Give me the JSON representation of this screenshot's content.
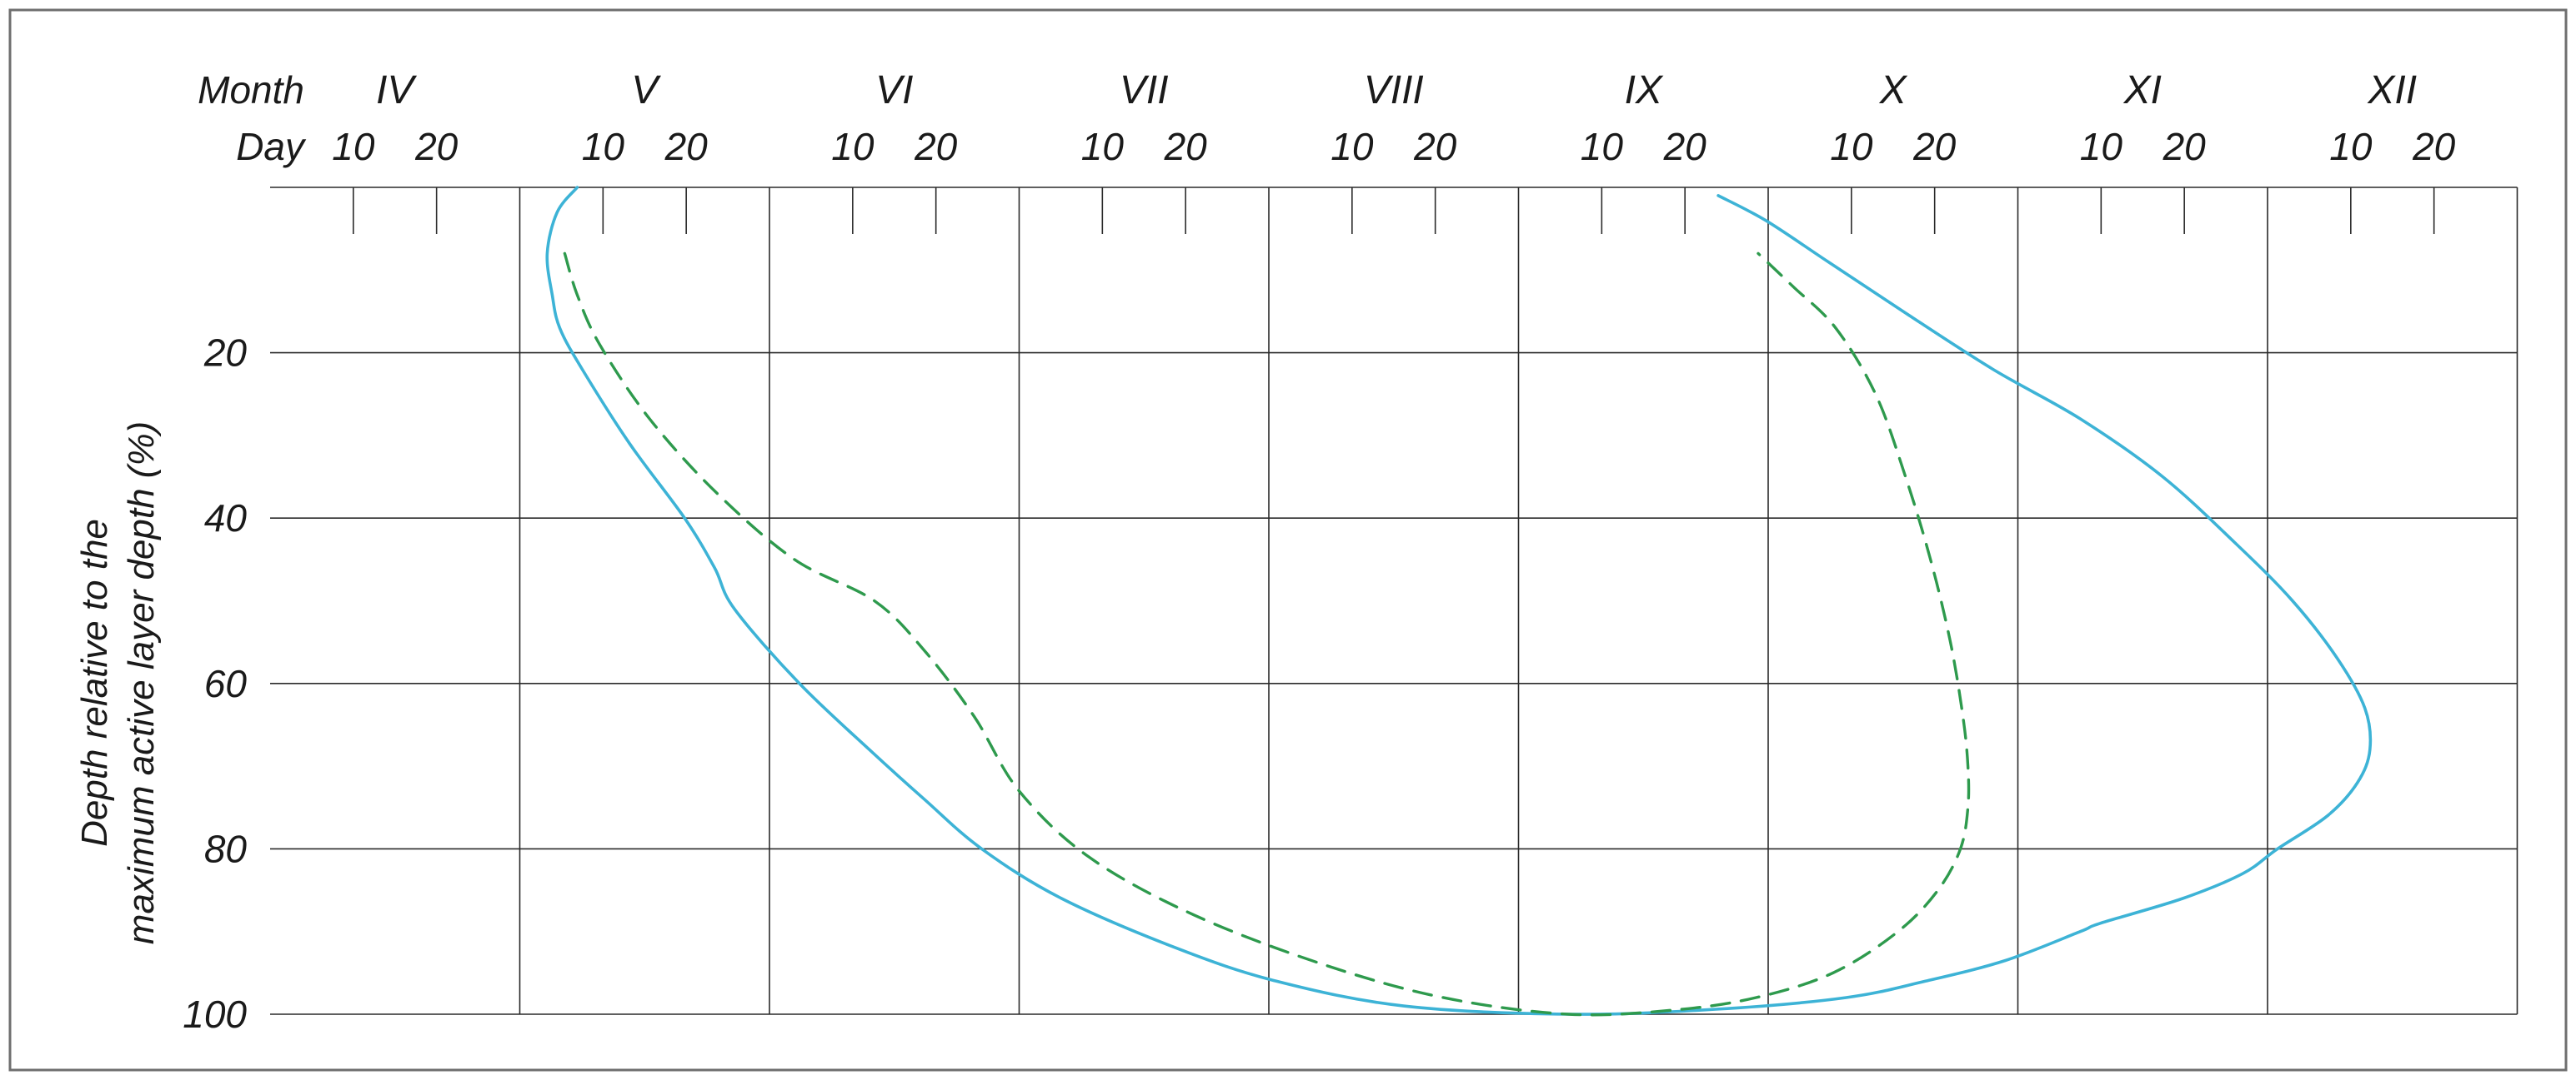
{
  "chart_data": {
    "type": "line",
    "title": "",
    "x_month_label": "Month",
    "x_day_label": "Day",
    "months": [
      "IV",
      "V",
      "VI",
      "VII",
      "VIII",
      "IX",
      "X",
      "XI",
      "XII"
    ],
    "day_ticks": [
      "10",
      "20"
    ],
    "ylabel_line1": "Depth relative to the",
    "ylabel_line2": "maximum active layer depth (%)",
    "ylim": [
      100,
      0
    ],
    "yticks": [
      "20",
      "40",
      "60",
      "80",
      "100"
    ],
    "x_unit": "month position (IV = 0 … XII end = 9)",
    "grid": true,
    "series": [
      {
        "style": "solid",
        "color": "#3db3d6",
        "points": [
          [
            1.23,
            0
          ],
          [
            1.15,
            3
          ],
          [
            1.11,
            8
          ],
          [
            1.13,
            13
          ],
          [
            1.16,
            17
          ],
          [
            1.25,
            22
          ],
          [
            1.44,
            31
          ],
          [
            1.66,
            40
          ],
          [
            1.78,
            46
          ],
          [
            1.86,
            51
          ],
          [
            2.12,
            60
          ],
          [
            2.4,
            68
          ],
          [
            2.62,
            74
          ],
          [
            2.85,
            80
          ],
          [
            3.17,
            86
          ],
          [
            3.63,
            92
          ],
          [
            4.03,
            96
          ],
          [
            4.54,
            99
          ],
          [
            5.2,
            100
          ],
          [
            5.79,
            99.4
          ],
          [
            6.31,
            98
          ],
          [
            6.63,
            96
          ],
          [
            6.95,
            93.5
          ],
          [
            7.25,
            90
          ],
          [
            7.33,
            89
          ],
          [
            7.66,
            86
          ],
          [
            7.9,
            83
          ],
          [
            8.04,
            80
          ],
          [
            8.24,
            76
          ],
          [
            8.36,
            72
          ],
          [
            8.41,
            68
          ],
          [
            8.39,
            63
          ],
          [
            8.28,
            57
          ],
          [
            8.1,
            50
          ],
          [
            7.87,
            43
          ],
          [
            7.58,
            35
          ],
          [
            7.25,
            28
          ],
          [
            6.9,
            22
          ],
          [
            6.54,
            15
          ],
          [
            6.24,
            9
          ],
          [
            5.99,
            4
          ],
          [
            5.8,
            1
          ]
        ]
      },
      {
        "style": "dashed",
        "color": "#2e9a4d",
        "points": [
          [
            1.18,
            8
          ],
          [
            1.23,
            13
          ],
          [
            1.32,
            19
          ],
          [
            1.52,
            28
          ],
          [
            1.79,
            37
          ],
          [
            2.1,
            45
          ],
          [
            2.42,
            50
          ],
          [
            2.62,
            56
          ],
          [
            2.82,
            64
          ],
          [
            3.0,
            73
          ],
          [
            3.28,
            81
          ],
          [
            3.7,
            88
          ],
          [
            4.22,
            94
          ],
          [
            4.7,
            98
          ],
          [
            5.2,
            100
          ],
          [
            5.62,
            99.5
          ],
          [
            5.95,
            98
          ],
          [
            6.26,
            95
          ],
          [
            6.52,
            90
          ],
          [
            6.68,
            85
          ],
          [
            6.77,
            80
          ],
          [
            6.8,
            75
          ],
          [
            6.8,
            70
          ],
          [
            6.78,
            64
          ],
          [
            6.73,
            55
          ],
          [
            6.65,
            45
          ],
          [
            6.55,
            35
          ],
          [
            6.43,
            25
          ],
          [
            6.27,
            17
          ],
          [
            6.1,
            12
          ],
          [
            5.96,
            8
          ]
        ]
      }
    ]
  }
}
